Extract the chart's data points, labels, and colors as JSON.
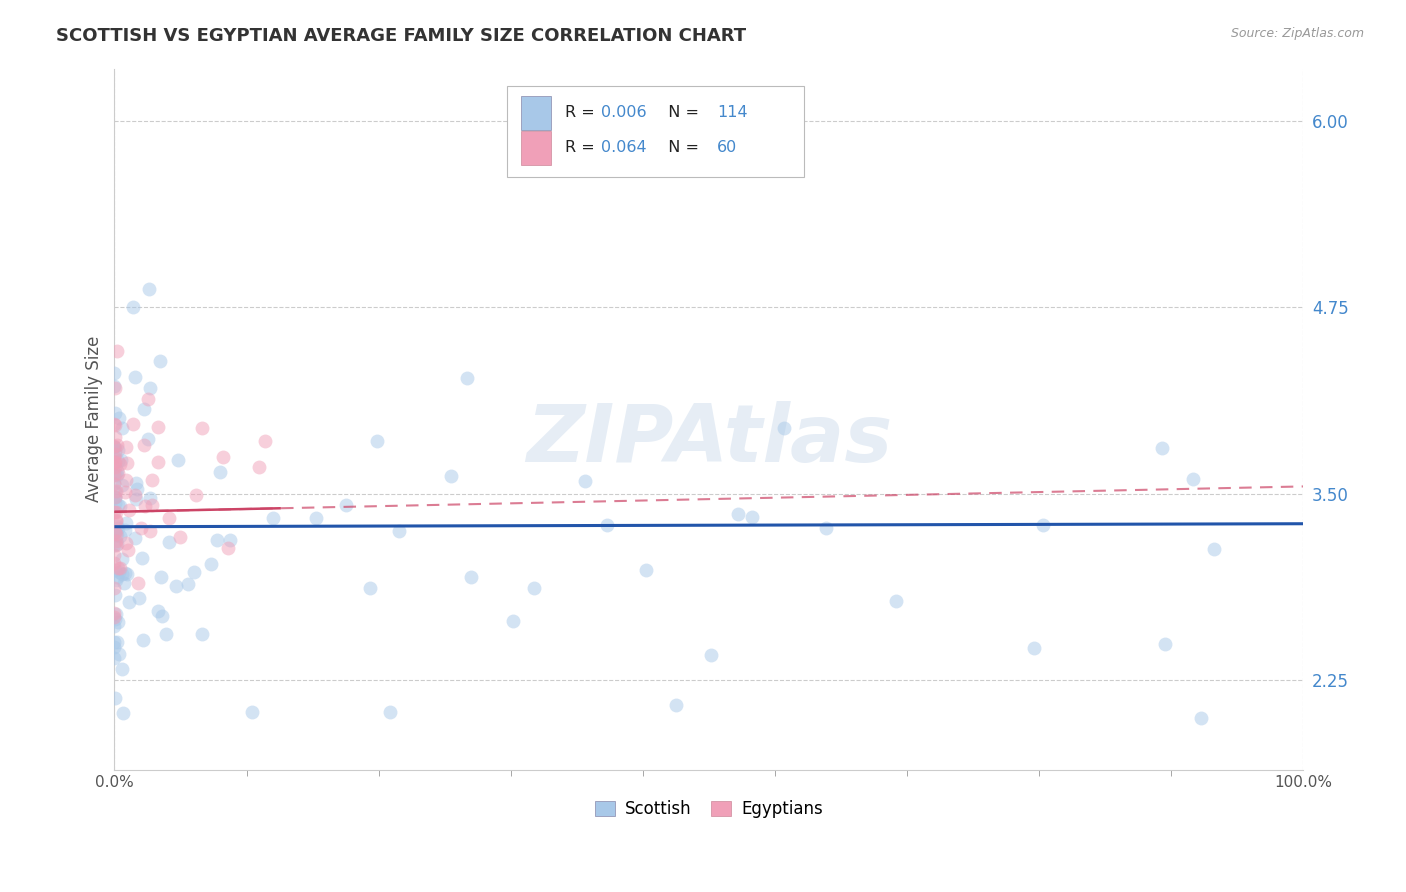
{
  "title": "SCOTTISH VS EGYPTIAN AVERAGE FAMILY SIZE CORRELATION CHART",
  "source": "Source: ZipAtlas.com",
  "ylabel": "Average Family Size",
  "xlim": [
    0,
    1.0
  ],
  "ylim": [
    1.65,
    6.35
  ],
  "yticks": [
    2.25,
    3.5,
    4.75,
    6.0
  ],
  "legend_sublabel1": "Scottish",
  "legend_sublabel2": "Egyptians",
  "scatter_color_blue": "#a8c8e8",
  "scatter_color_pink": "#f0a0b8",
  "line_color_blue": "#2255aa",
  "line_color_pink": "#cc4466",
  "title_color": "#333333",
  "source_color": "#999999",
  "axis_label_color": "#555555",
  "tick_color_right": "#4488cc",
  "background_color": "#ffffff",
  "grid_color": "#cccccc",
  "scatter_alpha": 0.5,
  "scatter_size": 100,
  "watermark_text": "ZIPAtlas",
  "watermark_color": "#b8cce4",
  "watermark_alpha": 0.35,
  "legend_R1": "0.006",
  "legend_N1": "114",
  "legend_R2": "0.064",
  "legend_N2": "60"
}
